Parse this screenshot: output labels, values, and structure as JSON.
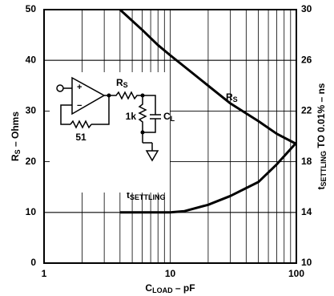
{
  "chart_data": {
    "type": "line",
    "x_label": [
      "C",
      "LOAD",
      " – pF"
    ],
    "y_label": [
      "R",
      "S",
      " – Ohms"
    ],
    "y2_label": [
      "t",
      "SETTLING",
      " TO 0.01% – ns"
    ],
    "xlim": [
      1,
      100
    ],
    "xticks": [
      1,
      10,
      100
    ],
    "xscale": "log",
    "ylim": [
      0,
      50
    ],
    "yticks": [
      0,
      10,
      20,
      30,
      40,
      50
    ],
    "y2lim": [
      10,
      30
    ],
    "y2ticks": [
      10,
      14,
      18,
      22,
      26,
      30
    ],
    "grid": true,
    "series": [
      {
        "label": [
          "R",
          "S"
        ],
        "color": "#000000",
        "axis": "y",
        "x": [
          4,
          6,
          8,
          10,
          15,
          20,
          30,
          50,
          70,
          100
        ],
        "values": [
          50,
          46,
          43,
          41,
          37.5,
          35,
          31.5,
          28,
          25.5,
          23.5
        ]
      },
      {
        "label": [
          "t",
          "SETTLING"
        ],
        "color": "#000000",
        "axis": "y2",
        "x": [
          4,
          7,
          10,
          13,
          20,
          30,
          50,
          70,
          100
        ],
        "values": [
          14,
          14,
          14,
          14.1,
          14.6,
          15.3,
          16.4,
          17.8,
          19.5
        ]
      }
    ],
    "inset": {
      "rs": [
        "R",
        "S"
      ],
      "resistor": "1k",
      "cap": [
        "C",
        "L"
      ],
      "feedback": "51"
    }
  }
}
